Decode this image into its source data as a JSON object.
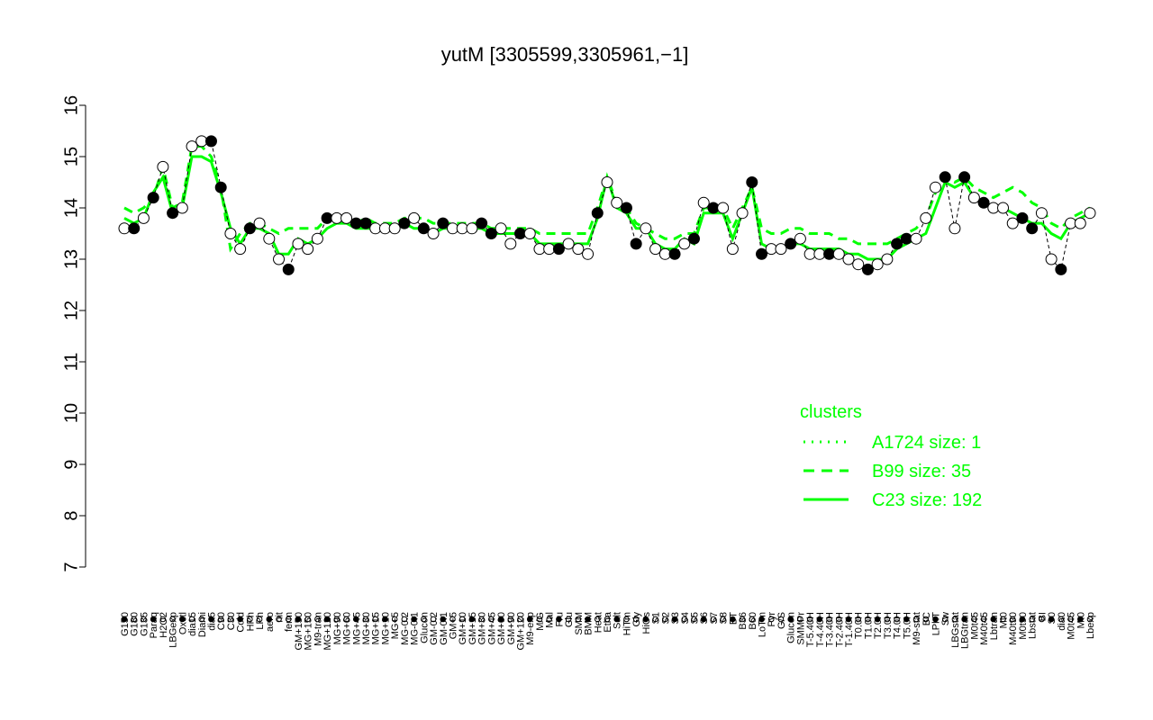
{
  "chart_data": {
    "type": "line",
    "title": "yutM [3305599,3305961,−1]",
    "xlabel": "",
    "ylabel": "",
    "ylim": [
      7,
      16
    ],
    "yticks": [
      7,
      8,
      9,
      10,
      11,
      12,
      13,
      14,
      15,
      16
    ],
    "grid": false,
    "legend_position": "bottom-right",
    "legend_title": "clusters",
    "legend": [
      {
        "label": "A1724 size: 1",
        "style": "dotted"
      },
      {
        "label": "B99 size: 35",
        "style": "dashed"
      },
      {
        "label": "C23 size: 192",
        "style": "solid"
      }
    ],
    "colors": {
      "line": "#00ff00",
      "point_fill": "#ffffff",
      "point_fill_dark": "#000000",
      "text": "#000000"
    },
    "x_labels": [
      "G150",
      "G180",
      "G135",
      "Paraq",
      "H2O2",
      "LBGexp",
      "Oxctl",
      "dia15",
      "Diami",
      "dia5",
      "C90",
      "C30",
      "Cold",
      "HPh",
      "LPh",
      "aero",
      "nit",
      "ferm",
      "GM+150",
      "MG+150",
      "M9-tran",
      "MG+120",
      "MG+90",
      "MG+60",
      "MG+45",
      "MG+30",
      "MG+15",
      "MG+10",
      "MG+5",
      "MG-0.2",
      "MG-0.1",
      "Glucon",
      "GM-0.2",
      "GM-0.1",
      "GM+5",
      "GM+10",
      "GM+15",
      "GM+30",
      "GM+45",
      "GM+60",
      "GM+90",
      "GM+120",
      "M9-exp",
      "M/G",
      "Mal",
      "Fru",
      "Glu",
      "SMM",
      "BMM",
      "Heat",
      "Etha",
      "Salt",
      "HiTm",
      "Gly",
      "HiOs",
      "S1",
      "S2",
      "S3",
      "S4",
      "S5",
      "S6",
      "S7",
      "S8",
      "BT",
      "B36",
      "B60",
      "LoTm",
      "Pyr",
      "G/S",
      "Glucon",
      "SMMPr",
      "T-5.40H",
      "T-4.40H",
      "T-3.40H",
      "T-2.40H",
      "T-1.40H",
      "T0.0H",
      "T1.0H",
      "T2.0H",
      "T3.0H",
      "T4.0H",
      "T5.0H",
      "M9-stat",
      "BC",
      "LPhT",
      "Sw",
      "LBGstat",
      "LBGtran",
      "M0t45",
      "M40t45",
      "Lbtran",
      "Mt0",
      "M40t90",
      "M0t90",
      "Lbstat",
      "BI",
      "S0",
      "dia0",
      "M0t45",
      "Mt0",
      "Lbexp"
    ],
    "series": [
      {
        "style": "solid",
        "values": [
          13.8,
          13.7,
          13.8,
          14.3,
          14.6,
          13.9,
          14.0,
          15.0,
          15.0,
          14.9,
          14.3,
          13.6,
          13.3,
          13.6,
          13.6,
          13.5,
          13.1,
          13.1,
          13.4,
          13.3,
          13.4,
          13.6,
          13.7,
          13.7,
          13.6,
          13.6,
          13.6,
          13.6,
          13.6,
          13.7,
          13.6,
          13.6,
          13.5,
          13.6,
          13.6,
          13.6,
          13.6,
          13.6,
          13.5,
          13.5,
          13.5,
          13.5,
          13.5,
          13.3,
          13.3,
          13.3,
          13.3,
          13.3,
          13.3,
          13.8,
          14.6,
          14.0,
          13.9,
          13.6,
          13.6,
          13.3,
          13.2,
          13.2,
          13.4,
          13.3,
          13.9,
          13.9,
          13.9,
          13.4,
          13.9,
          14.4,
          13.3,
          13.2,
          13.2,
          13.3,
          13.3,
          13.2,
          13.2,
          13.2,
          13.2,
          13.1,
          13.1,
          13.0,
          13.0,
          13.0,
          13.2,
          13.3,
          13.4,
          13.5,
          14.0,
          14.5,
          14.4,
          14.5,
          14.2,
          14.1,
          14.0,
          14.0,
          13.9,
          13.8,
          13.7,
          13.7,
          13.5,
          13.4,
          13.7,
          13.8,
          13.9
        ]
      },
      {
        "style": "dashed",
        "values": [
          14.0,
          13.9,
          14.0,
          14.2,
          14.8,
          14.0,
          14.1,
          15.2,
          15.2,
          15.0,
          14.4,
          13.2,
          13.5,
          13.7,
          13.7,
          13.6,
          13.5,
          13.6,
          13.6,
          13.6,
          13.6,
          13.8,
          13.8,
          13.8,
          13.7,
          13.8,
          13.7,
          13.7,
          13.7,
          13.8,
          13.8,
          13.8,
          13.7,
          13.7,
          13.7,
          13.7,
          13.7,
          13.7,
          13.6,
          13.6,
          13.6,
          13.6,
          13.6,
          13.5,
          13.5,
          13.5,
          13.5,
          13.5,
          13.5,
          14.0,
          14.6,
          14.1,
          14.0,
          13.7,
          13.6,
          13.5,
          13.4,
          13.4,
          13.5,
          13.5,
          14.0,
          14.0,
          14.0,
          13.6,
          14.0,
          14.4,
          13.6,
          13.5,
          13.5,
          13.6,
          13.6,
          13.5,
          13.5,
          13.5,
          13.4,
          13.4,
          13.3,
          13.3,
          13.3,
          13.3,
          13.4,
          13.5,
          13.6,
          13.8,
          14.3,
          14.6,
          14.5,
          14.6,
          14.4,
          14.3,
          14.2,
          14.3,
          14.4,
          14.3,
          14.1,
          14.0,
          13.7,
          13.6,
          13.8,
          13.9,
          14.0
        ]
      },
      {
        "style": "points",
        "values": [
          13.6,
          13.6,
          13.8,
          14.2,
          14.8,
          13.9,
          14.0,
          15.2,
          15.3,
          15.3,
          14.4,
          13.5,
          13.2,
          13.6,
          13.7,
          13.4,
          13.0,
          12.8,
          13.3,
          13.2,
          13.4,
          13.8,
          13.8,
          13.8,
          13.7,
          13.7,
          13.6,
          13.6,
          13.6,
          13.7,
          13.8,
          13.6,
          13.5,
          13.7,
          13.6,
          13.6,
          13.6,
          13.7,
          13.5,
          13.6,
          13.3,
          13.5,
          13.5,
          13.2,
          13.2,
          13.2,
          13.3,
          13.2,
          13.1,
          13.9,
          14.5,
          14.1,
          14.0,
          13.3,
          13.6,
          13.2,
          13.1,
          13.1,
          13.3,
          13.4,
          14.1,
          14.0,
          14.0,
          13.2,
          13.9,
          14.5,
          13.1,
          13.2,
          13.2,
          13.3,
          13.4,
          13.1,
          13.1,
          13.1,
          13.1,
          13.0,
          12.9,
          12.8,
          12.9,
          13.0,
          13.3,
          13.4,
          13.4,
          13.8,
          14.4,
          14.6,
          13.6,
          14.6,
          14.2,
          14.1,
          14.0,
          14.0,
          13.7,
          13.8,
          13.6,
          13.9,
          13.0,
          12.8,
          13.7,
          13.7,
          13.9
        ]
      }
    ]
  }
}
